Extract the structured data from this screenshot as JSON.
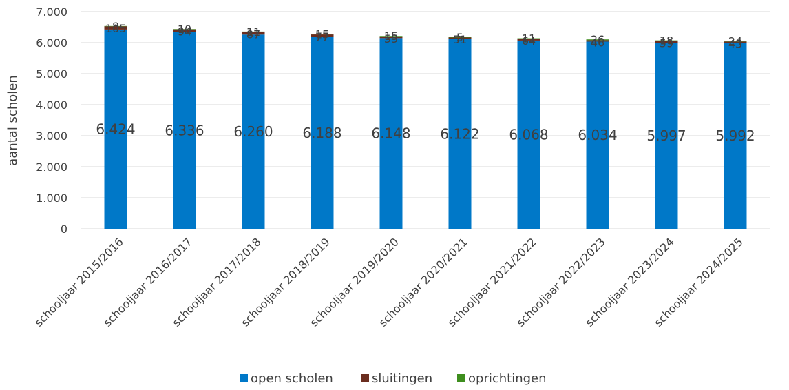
{
  "chart_data": {
    "type": "bar",
    "stacked": true,
    "ylabel": "aantal scholen",
    "ylim": [
      0,
      7000
    ],
    "ytick_step": 1000,
    "yticks": [
      "0",
      "1.000",
      "2.000",
      "3.000",
      "4.000",
      "5.000",
      "6.000",
      "7.000"
    ],
    "grid": true,
    "legend_position": "bottom",
    "categories": [
      "schooljaar 2015/2016",
      "schooljaar 2016/2017",
      "schooljaar 2017/2018",
      "schooljaar 2018/2019",
      "schooljaar 2019/2020",
      "schooljaar 2020/2021",
      "schooljaar 2021/2022",
      "schooljaar 2022/2023",
      "schooljaar 2023/2024",
      "schooljaar 2024/2025"
    ],
    "series": [
      {
        "name": "open scholen",
        "color": "#0078C8",
        "values": [
          6424,
          6336,
          6260,
          6188,
          6148,
          6122,
          6068,
          6034,
          5997,
          5992
        ],
        "labels": [
          "6.424",
          "6.336",
          "6.260",
          "6.188",
          "6.148",
          "6.122",
          "6.068",
          "6.034",
          "5.997",
          "5.992"
        ]
      },
      {
        "name": "sluitingen",
        "color": "#6B2D1F",
        "values": [
          105,
          94,
          87,
          77,
          55,
          51,
          64,
          46,
          59,
          45
        ],
        "labels": [
          "105",
          "94",
          "87",
          "77",
          "55",
          "51",
          "64",
          "46",
          "59",
          "45"
        ]
      },
      {
        "name": "oprichtingen",
        "color": "#3E8E1E",
        "values": [
          8,
          10,
          11,
          15,
          15,
          5,
          11,
          26,
          18,
          24
        ],
        "labels": [
          "8",
          "10",
          "11",
          "15",
          "15",
          "5",
          "11",
          "26",
          "18",
          "24"
        ]
      }
    ]
  }
}
